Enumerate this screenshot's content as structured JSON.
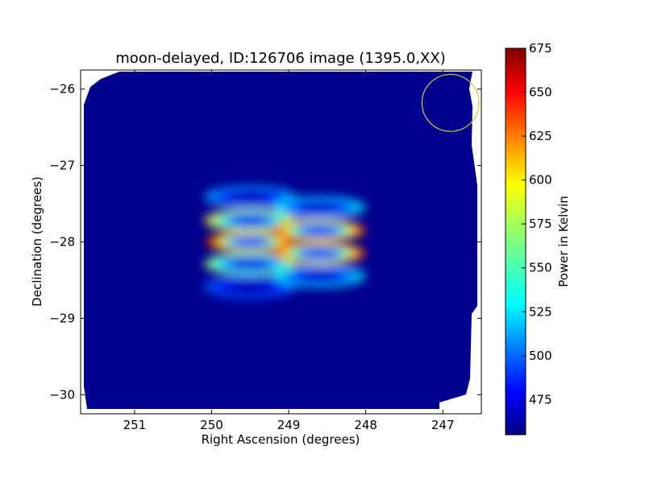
{
  "chart_data": {
    "type": "heatmap",
    "title": "moon-delayed, ID:126706 image (1395.0,XX)",
    "xlabel": "Right Ascension (degrees)",
    "ylabel": "Declination (degrees)",
    "x_axis_reversed": true,
    "xlim": [
      251.7,
      246.5
    ],
    "ylim": [
      -30.25,
      -25.75
    ],
    "x_ticks": [
      {
        "value": 251,
        "label": "251"
      },
      {
        "value": 250,
        "label": "250"
      },
      {
        "value": 249,
        "label": "249"
      },
      {
        "value": 248,
        "label": "248"
      },
      {
        "value": 247,
        "label": "247"
      }
    ],
    "y_ticks": [
      {
        "value": -26,
        "label": "−26"
      },
      {
        "value": -27,
        "label": "−27"
      },
      {
        "value": -28,
        "label": "−28"
      },
      {
        "value": -29,
        "label": "−29"
      },
      {
        "value": -30,
        "label": "−30"
      }
    ],
    "colormap": "jet",
    "background_value": 455,
    "colorbar": {
      "label": "Power in Kelvin",
      "min": 455,
      "max": 675,
      "ticks": [
        {
          "value": 475,
          "label": "475"
        },
        {
          "value": 500,
          "label": "500"
        },
        {
          "value": 525,
          "label": "525"
        },
        {
          "value": 550,
          "label": "550"
        },
        {
          "value": 575,
          "label": "575"
        },
        {
          "value": 600,
          "label": "600"
        },
        {
          "value": 625,
          "label": "625"
        },
        {
          "value": 650,
          "label": "650"
        },
        {
          "value": 675,
          "label": "675"
        }
      ]
    },
    "blobs": [
      {
        "ra": 249.5,
        "dec": -28.0,
        "peak": 670
      },
      {
        "ra": 249.5,
        "dec": -27.72,
        "peak": 600
      },
      {
        "ra": 249.5,
        "dec": -28.29,
        "peak": 575
      },
      {
        "ra": 249.5,
        "dec": -27.41,
        "peak": 520
      },
      {
        "ra": 249.5,
        "dec": -28.59,
        "peak": 505
      },
      {
        "ra": 248.6,
        "dec": -27.85,
        "peak": 640
      },
      {
        "ra": 248.6,
        "dec": -28.15,
        "peak": 640
      },
      {
        "ra": 248.6,
        "dec": -27.55,
        "peak": 535
      },
      {
        "ra": 248.6,
        "dec": -28.45,
        "peak": 535
      }
    ],
    "marker_circle": {
      "ra": 246.9,
      "dec": -26.18,
      "radius_deg": 0.37,
      "color": "#d4c830"
    }
  }
}
